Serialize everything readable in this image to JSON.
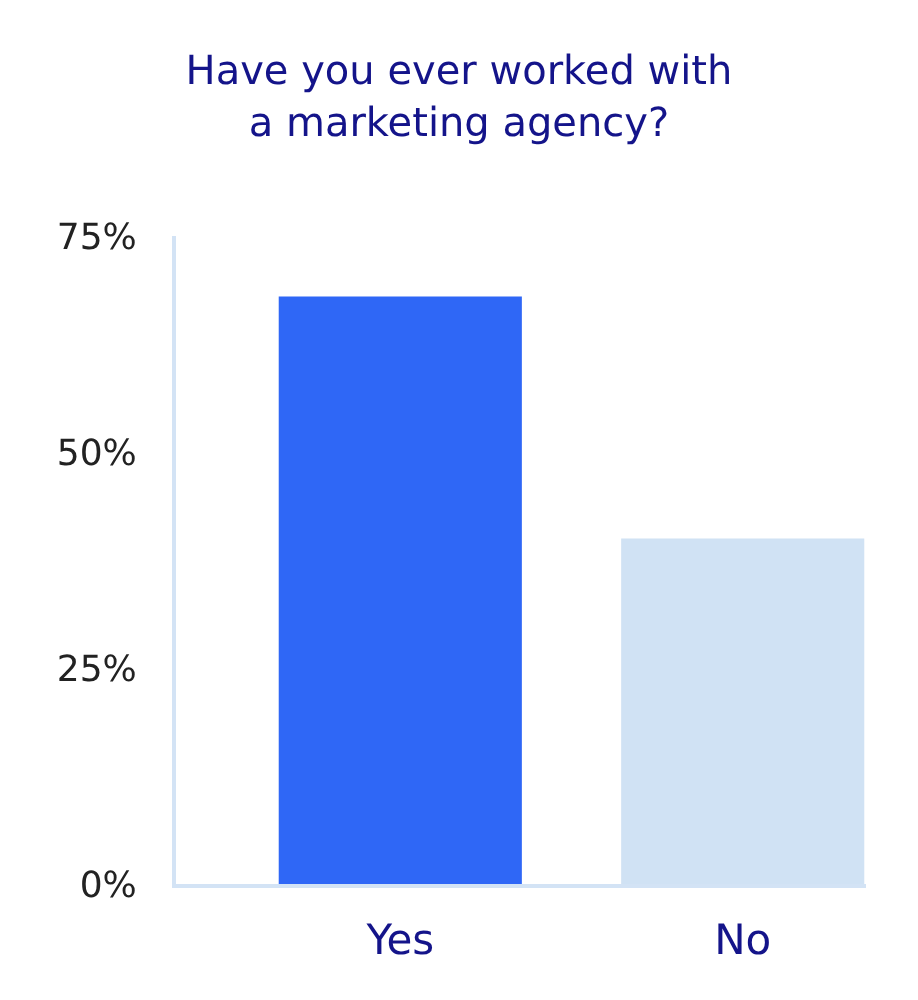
{
  "chart_data": {
    "type": "bar",
    "title": "Have you ever worked with\na marketing agency?",
    "categories": [
      "Yes",
      "No"
    ],
    "values": [
      68,
      40
    ],
    "colors": [
      "#2f67f6",
      "#d0e2f4"
    ],
    "ylim": [
      0,
      75
    ],
    "yticks": [
      {
        "value": 0,
        "label": "0%"
      },
      {
        "value": 25,
        "label": "25%"
      },
      {
        "value": 50,
        "label": "50%"
      },
      {
        "value": 75,
        "label": "75%"
      }
    ]
  }
}
